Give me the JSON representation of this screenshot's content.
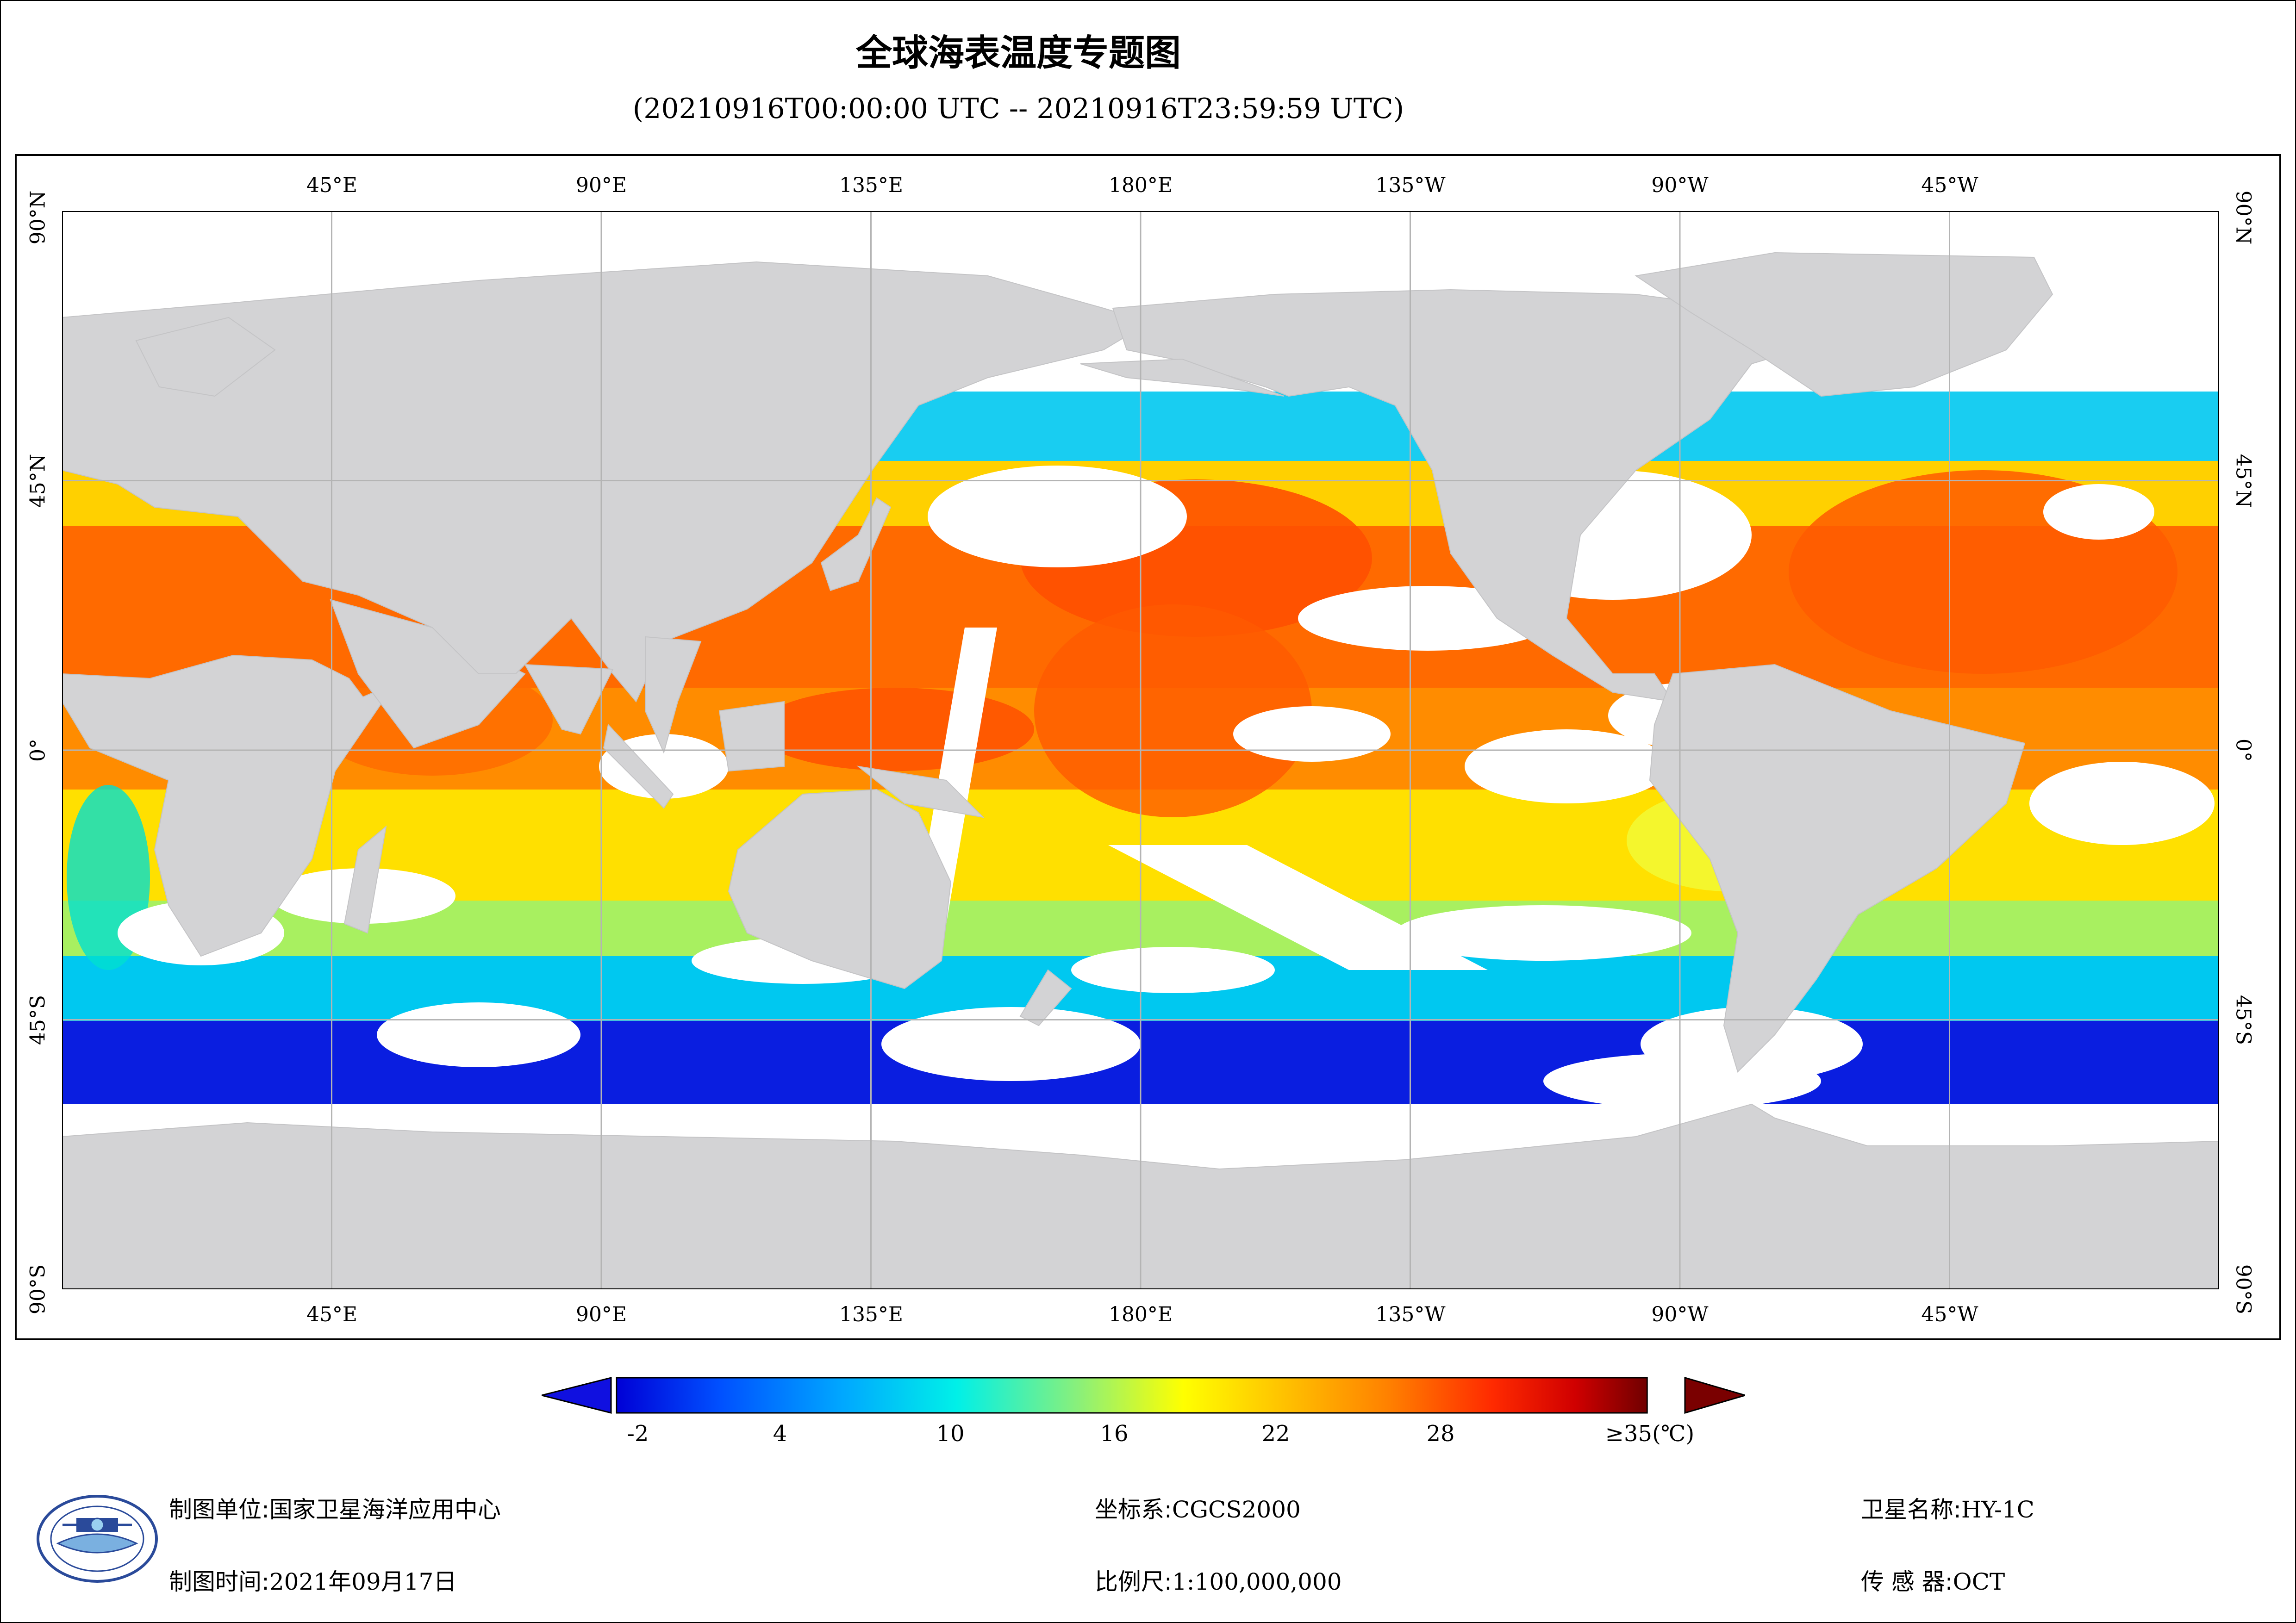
{
  "title": "全球海表温度专题图",
  "subtitle": "(20210916T00:00:00 UTC -- 20210916T23:59:59 UTC)",
  "map": {
    "lon_labels": [
      "45°E",
      "90°E",
      "135°E",
      "180°E",
      "135°W",
      "90°W",
      "45°W"
    ],
    "lat_labels": [
      "90°N",
      "45°N",
      "0°",
      "45°S",
      "90°S"
    ],
    "colors": {
      "land": "#d3d3d5",
      "cloud": "#ffffff",
      "grid": "#b4b4b4"
    }
  },
  "colorbar": {
    "ticks": [
      "-2",
      "4",
      "10",
      "16",
      "22",
      "28",
      "≥35(℃)"
    ],
    "colors": [
      "#0000d6",
      "#0050ff",
      "#00a8ff",
      "#00f0e8",
      "#60f0a0",
      "#c8f040",
      "#ffff00",
      "#ffc000",
      "#ff8000",
      "#ff4000",
      "#e00000",
      "#700000"
    ],
    "under_color": "#1010e0",
    "over_color": "#7a0000"
  },
  "info": {
    "unit_label": "制图单位:",
    "unit_value": "国家卫星海洋应用中心",
    "time_label": "制图时间:",
    "time_value": "2021年09月17日",
    "crs_label": "坐标系:",
    "crs_value": "CGCS2000",
    "scale_label": "比例尺:",
    "scale_value": "1:100,000,000",
    "sat_label": "卫星名称:",
    "sat_value": "HY-1C",
    "sensor_label": "传 感 器:",
    "sensor_value": "OCT"
  }
}
